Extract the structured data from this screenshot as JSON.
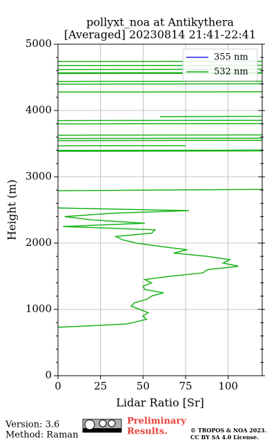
{
  "chart_data": {
    "type": "line",
    "title": "pollyxt_noa at Antikythera",
    "subtitle": "[Averaged] 20230814 21:41-22:41",
    "x_label": "Lidar Ratio [Sr]",
    "y_label": "Height (m)",
    "xlim": [
      0,
      120
    ],
    "xticks": [
      0,
      25,
      50,
      75,
      100
    ],
    "ylim": [
      0,
      5000
    ],
    "yticks": [
      0,
      1000,
      2000,
      3000,
      4000,
      5000
    ],
    "yminorticks": [
      200,
      400,
      600,
      800,
      1200,
      1400,
      1600,
      1800,
      2200,
      2400,
      2600,
      2800,
      3200,
      3400,
      3600,
      3800,
      4200,
      4400,
      4600,
      4800
    ],
    "grid": true,
    "legend": "upper right",
    "y": [
      730,
      760,
      780,
      800,
      850,
      900,
      950,
      1000,
      1050,
      1100,
      1150,
      1200,
      1250,
      1300,
      1350,
      1400,
      1450,
      1500,
      1550,
      1600,
      1650,
      1700,
      1750,
      1800,
      1850,
      1900,
      1950,
      2000,
      2050,
      2100,
      2150,
      2200,
      2250,
      2300,
      2350,
      2400,
      2450,
      2490,
      2530,
      2600,
      2790,
      2810,
      2850,
      3385,
      3390,
      3392,
      3398,
      3402,
      3420,
      3468,
      3470,
      3500,
      3545,
      3550,
      3560,
      3578,
      3582,
      3600,
      3628,
      3632,
      3700,
      3798,
      3802,
      3820,
      3848,
      3852,
      3880,
      3908,
      3912,
      4000,
      4278,
      4282,
      4300,
      4398,
      4402,
      4420,
      4438,
      4442,
      4500,
      4558,
      4562,
      4565,
      4568,
      4572,
      4600,
      4618,
      4622,
      4650,
      4678,
      4682,
      4700,
      4738,
      4742
    ],
    "series": [
      {
        "name": "355 nm",
        "color": "#1f1fe0",
        "values": [
          null,
          null,
          null,
          null,
          null,
          null,
          null,
          null,
          null,
          null,
          null,
          null,
          null,
          null,
          null,
          null,
          null,
          null,
          null,
          null,
          null,
          null,
          null,
          null,
          null,
          null,
          null,
          null,
          null,
          null,
          null,
          null,
          null,
          null,
          null,
          null,
          null,
          null,
          null,
          null,
          null,
          null,
          null,
          null,
          null,
          null,
          null,
          null,
          null,
          null,
          null,
          null,
          null,
          null,
          null,
          null,
          null,
          null,
          null,
          null,
          null,
          null,
          null,
          null,
          null,
          null,
          null,
          null,
          null,
          null,
          null,
          null,
          null,
          null,
          null,
          null,
          null,
          null,
          null,
          null,
          null,
          null,
          null,
          null,
          null,
          null,
          null,
          null,
          null,
          null,
          null,
          null,
          null
        ]
      },
      {
        "name": "532 nm",
        "color": "#17b217",
        "values": [
          0,
          25,
          40,
          44,
          52,
          50,
          53,
          48,
          43,
          45,
          52,
          55,
          62,
          51,
          50,
          55,
          51,
          66,
          85,
          88,
          106,
          97,
          101,
          88,
          68,
          76,
          60,
          46,
          38,
          34,
          55,
          57,
          3,
          51,
          20,
          4,
          32,
          77,
          0,
          null,
          0,
          120,
          null,
          0,
          120,
          null,
          0,
          120,
          null,
          0,
          75,
          null,
          0,
          120,
          null,
          0,
          120,
          null,
          0,
          120,
          null,
          0,
          120,
          null,
          0,
          120,
          null,
          60,
          120,
          null,
          0,
          120,
          null,
          0,
          120,
          null,
          0,
          120,
          null,
          0,
          120,
          null,
          0,
          120,
          null,
          0,
          120,
          null,
          0,
          120,
          null,
          0,
          120
        ]
      }
    ]
  },
  "footer": {
    "version": "Version: 3.6",
    "method": "Method: Raman",
    "notice_line1": "Preliminary",
    "notice_line2": "Results.",
    "copyright": "© TROPOS & NOA 2023.",
    "license": "CC BY SA 4.0 License."
  }
}
